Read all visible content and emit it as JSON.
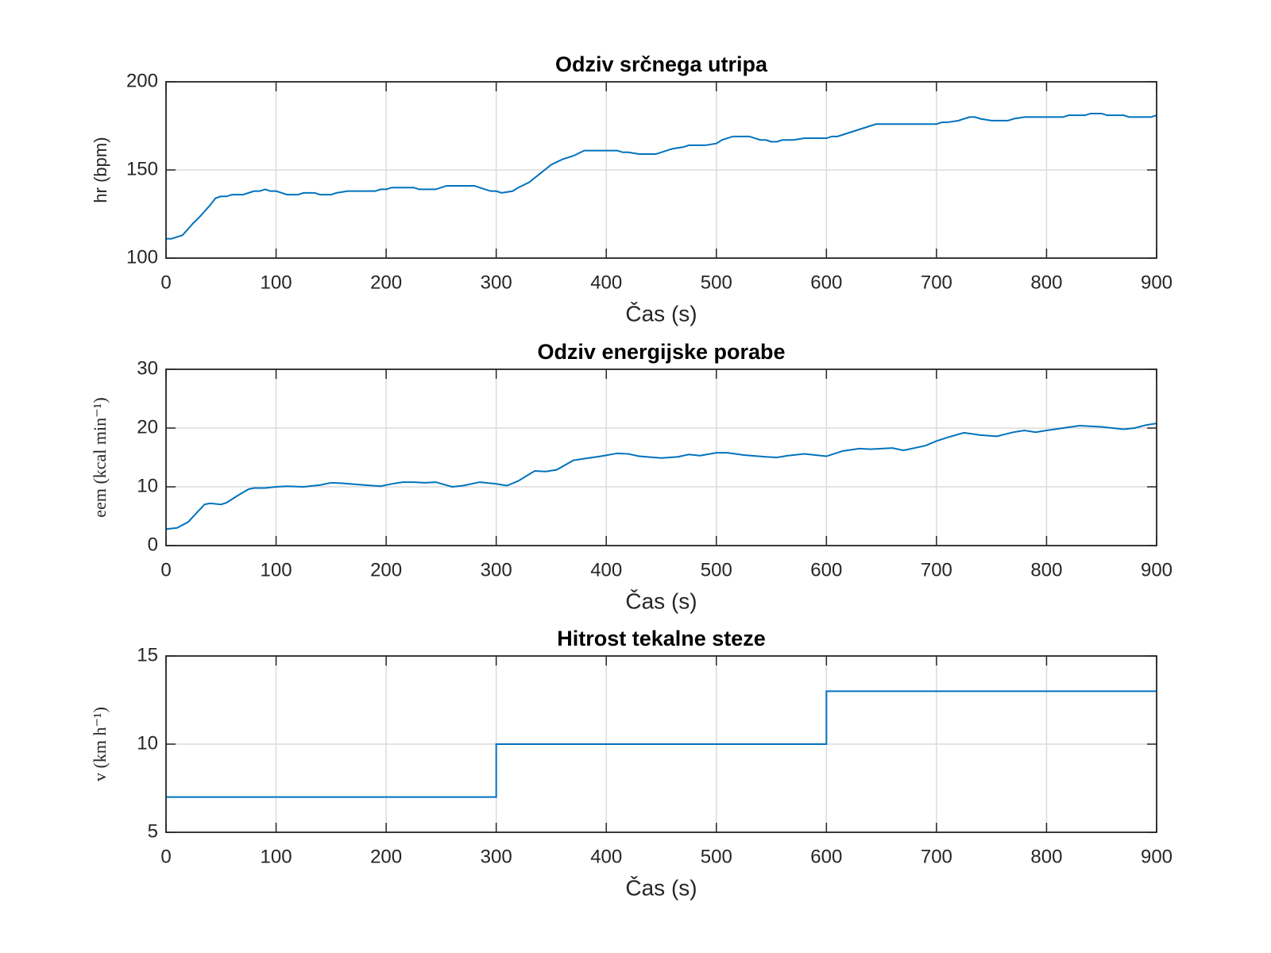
{
  "chart_data": [
    {
      "type": "line",
      "title": "Odziv srčnega utripa",
      "xlabel": "Čas (s)",
      "ylabel": "hr (bpm)",
      "color": "#0072bd",
      "grid": true,
      "x": [
        0,
        5,
        15,
        25,
        30,
        40,
        45,
        50,
        55,
        60,
        70,
        80,
        85,
        90,
        95,
        100,
        105,
        110,
        120,
        125,
        135,
        140,
        150,
        155,
        165,
        190,
        195,
        200,
        205,
        225,
        230,
        245,
        255,
        280,
        290,
        295,
        300,
        305,
        315,
        320,
        330,
        340,
        350,
        360,
        370,
        380,
        410,
        415,
        420,
        430,
        445,
        450,
        460,
        470,
        475,
        490,
        500,
        505,
        515,
        530,
        540,
        545,
        550,
        555,
        560,
        570,
        580,
        600,
        605,
        610,
        620,
        640,
        645,
        700,
        705,
        710,
        720,
        725,
        730,
        735,
        740,
        750,
        765,
        770,
        780,
        815,
        820,
        835,
        840,
        850,
        855,
        870,
        875,
        895,
        900
      ],
      "values": [
        111,
        111,
        113,
        120,
        123,
        130,
        134,
        135,
        135,
        136,
        136,
        138,
        138,
        139,
        138,
        138,
        137,
        136,
        136,
        137,
        137,
        136,
        136,
        137,
        138,
        138,
        139,
        139,
        140,
        140,
        139,
        139,
        141,
        141,
        139,
        138,
        138,
        137,
        138,
        140,
        143,
        148,
        153,
        156,
        158,
        161,
        161,
        160,
        160,
        159,
        159,
        160,
        162,
        163,
        164,
        164,
        165,
        167,
        169,
        169,
        167,
        167,
        166,
        166,
        167,
        167,
        168,
        168,
        169,
        169,
        171,
        175,
        176,
        176,
        177,
        177,
        178,
        179,
        180,
        180,
        179,
        178,
        178,
        179,
        180,
        180,
        181,
        181,
        182,
        182,
        181,
        181,
        180,
        180,
        181
      ],
      "xlim": [
        0,
        900
      ],
      "xticks": [
        0,
        100,
        200,
        300,
        400,
        500,
        600,
        700,
        800,
        900
      ],
      "ylim": [
        100,
        200
      ],
      "yticks": [
        100,
        150,
        200
      ]
    },
    {
      "type": "line",
      "title": "Odziv energijske porabe",
      "xlabel": "Čas (s)",
      "ylabel": "eem (kcal min⁻¹)",
      "color": "#0072bd",
      "grid": true,
      "x": [
        0,
        10,
        20,
        30,
        35,
        40,
        50,
        55,
        65,
        75,
        80,
        90,
        100,
        110,
        125,
        140,
        150,
        160,
        180,
        195,
        205,
        215,
        225,
        235,
        245,
        260,
        270,
        285,
        300,
        310,
        320,
        335,
        345,
        355,
        370,
        380,
        395,
        410,
        420,
        430,
        450,
        465,
        475,
        485,
        500,
        510,
        525,
        545,
        555,
        565,
        580,
        600,
        615,
        630,
        640,
        660,
        670,
        690,
        700,
        710,
        725,
        740,
        755,
        770,
        780,
        790,
        800,
        815,
        830,
        850,
        870,
        880,
        890,
        900
      ],
      "values": [
        2.8,
        3.0,
        4.0,
        6.0,
        7.0,
        7.2,
        7.0,
        7.3,
        8.5,
        9.6,
        9.8,
        9.8,
        10.0,
        10.1,
        10.0,
        10.3,
        10.7,
        10.6,
        10.3,
        10.1,
        10.5,
        10.8,
        10.8,
        10.7,
        10.8,
        10.0,
        10.2,
        10.8,
        10.5,
        10.2,
        11.0,
        12.7,
        12.6,
        12.9,
        14.5,
        14.8,
        15.2,
        15.7,
        15.6,
        15.2,
        14.9,
        15.1,
        15.5,
        15.3,
        15.8,
        15.8,
        15.4,
        15.1,
        15.0,
        15.3,
        15.6,
        15.2,
        16.1,
        16.5,
        16.4,
        16.6,
        16.2,
        17.0,
        17.8,
        18.4,
        19.2,
        18.8,
        18.6,
        19.3,
        19.6,
        19.3,
        19.6,
        20.0,
        20.4,
        20.2,
        19.8,
        20.0,
        20.5,
        20.8
      ],
      "xlim": [
        0,
        900
      ],
      "xticks": [
        0,
        100,
        200,
        300,
        400,
        500,
        600,
        700,
        800,
        900
      ],
      "ylim": [
        0,
        30
      ],
      "yticks": [
        0,
        10,
        20,
        30
      ]
    },
    {
      "type": "line",
      "title": "Hitrost tekalne steze",
      "xlabel": "Čas (s)",
      "ylabel": "v (km h⁻¹)",
      "color": "#0072bd",
      "grid": true,
      "x": [
        0,
        300,
        300,
        600,
        600,
        900
      ],
      "values": [
        7,
        7,
        10,
        10,
        13,
        13
      ],
      "xlim": [
        0,
        900
      ],
      "xticks": [
        0,
        100,
        200,
        300,
        400,
        500,
        600,
        700,
        800,
        900
      ],
      "ylim": [
        5,
        15
      ],
      "yticks": [
        5,
        10,
        15
      ]
    }
  ]
}
